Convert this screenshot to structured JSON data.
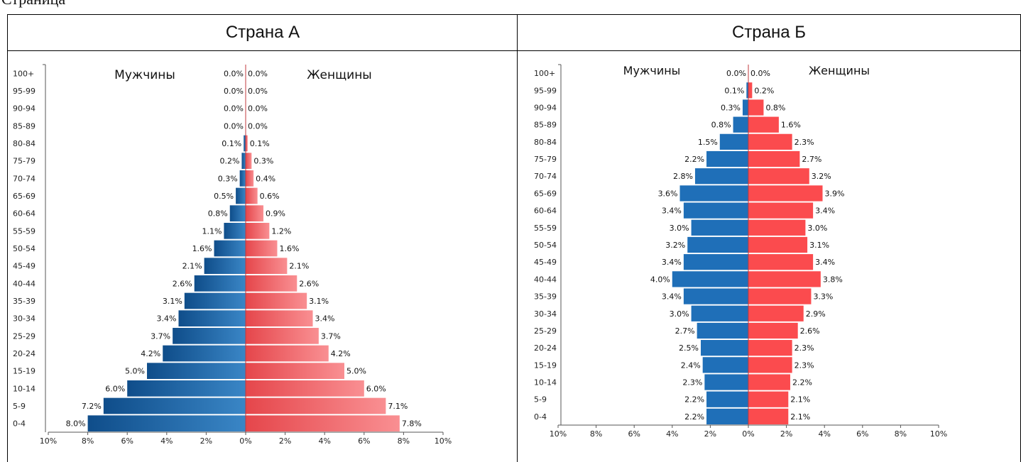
{
  "page": {
    "title_fragment": "Страница"
  },
  "headers": [
    "Страна А",
    "Страна Б"
  ],
  "chart_data": [
    {
      "type": "bar",
      "orientation": "horizontal-pyramid",
      "categories": [
        "100+",
        "95-99",
        "90-94",
        "85-89",
        "80-84",
        "75-79",
        "70-74",
        "65-69",
        "60-64",
        "55-59",
        "50-54",
        "45-49",
        "40-44",
        "35-39",
        "30-34",
        "25-29",
        "20-24",
        "15-19",
        "10-14",
        "5-9",
        "0-4"
      ],
      "series": [
        {
          "name": "Мужчины",
          "side": "left",
          "color": "#1f63a8",
          "values": [
            0.0,
            0.0,
            0.0,
            0.0,
            0.1,
            0.2,
            0.3,
            0.5,
            0.8,
            1.1,
            1.6,
            2.1,
            2.6,
            3.1,
            3.4,
            3.7,
            4.2,
            5.0,
            6.0,
            7.2,
            8.0
          ]
        },
        {
          "name": "Женщины",
          "side": "right",
          "color": "#f05b5f",
          "values": [
            0.0,
            0.0,
            0.0,
            0.0,
            0.1,
            0.3,
            0.4,
            0.6,
            0.9,
            1.2,
            1.6,
            2.1,
            2.6,
            3.1,
            3.4,
            3.7,
            4.2,
            5.0,
            6.0,
            7.1,
            7.8
          ]
        }
      ],
      "xlim": [
        -10,
        10
      ],
      "xticks": [
        "10%",
        "8%",
        "6%",
        "4%",
        "2%",
        "0%",
        "2%",
        "4%",
        "6%",
        "8%",
        "10%"
      ],
      "gradient": true
    },
    {
      "type": "bar",
      "orientation": "horizontal-pyramid",
      "categories": [
        "100+",
        "95-99",
        "90-94",
        "85-89",
        "80-84",
        "75-79",
        "70-74",
        "65-69",
        "60-64",
        "55-59",
        "50-54",
        "45-49",
        "40-44",
        "35-39",
        "30-34",
        "25-29",
        "20-24",
        "15-19",
        "10-14",
        "5-9",
        "0-4"
      ],
      "series": [
        {
          "name": "Мужчины",
          "side": "left",
          "color": "#1f6fb8",
          "values": [
            0.0,
            0.1,
            0.3,
            0.8,
            1.5,
            2.2,
            2.8,
            3.6,
            3.4,
            3.0,
            3.2,
            3.4,
            4.0,
            3.4,
            3.0,
            2.7,
            2.5,
            2.4,
            2.3,
            2.2,
            2.2
          ]
        },
        {
          "name": "Женщины",
          "side": "right",
          "color": "#fb4b4e",
          "values": [
            0.0,
            0.2,
            0.8,
            1.6,
            2.3,
            2.7,
            3.2,
            3.9,
            3.4,
            3.0,
            3.1,
            3.4,
            3.8,
            3.3,
            2.9,
            2.6,
            2.3,
            2.3,
            2.2,
            2.1,
            2.1
          ]
        }
      ],
      "xlim": [
        -10,
        10
      ],
      "xticks": [
        "10%",
        "8%",
        "6%",
        "4%",
        "2%",
        "0%",
        "2%",
        "4%",
        "6%",
        "8%",
        "10%"
      ],
      "gradient": false
    }
  ]
}
